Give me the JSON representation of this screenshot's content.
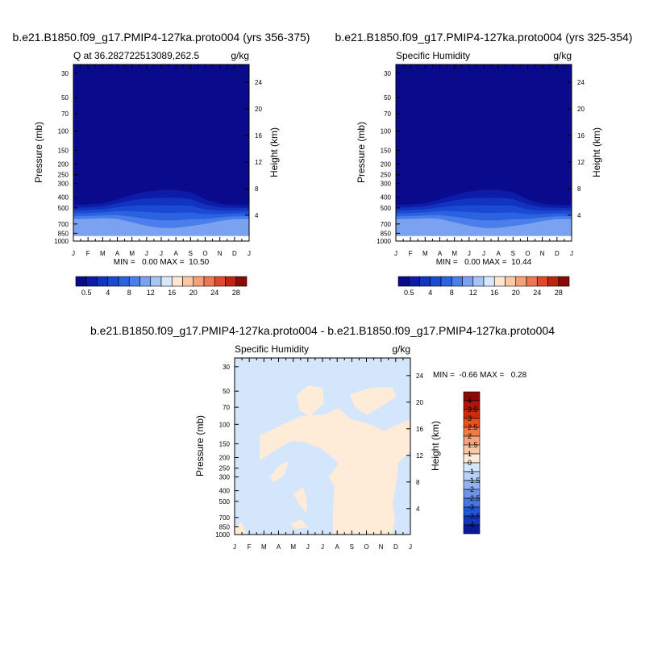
{
  "chart_data": [
    {
      "type": "contour",
      "title": "b.e21.B1850.f09_g17.PMIP4-127ka.proto004 (yrs 356-375)",
      "left_label": "Q at 36.282722513089,262.5",
      "units": "g/kg",
      "xlabel": "",
      "ylabel": "Pressure (mb)",
      "right_ylabel": "Height (km)",
      "x_ticklabels": [
        "J",
        "F",
        "M",
        "A",
        "M",
        "J",
        "J",
        "A",
        "S",
        "O",
        "N",
        "D",
        "J"
      ],
      "y_ticks": [
        30,
        50,
        70,
        100,
        150,
        200,
        250,
        300,
        400,
        500,
        700,
        850,
        1000
      ],
      "y_scale": "log",
      "ylim": [
        1000,
        25
      ],
      "height_ticks": [
        4,
        8,
        12,
        16,
        20,
        24
      ],
      "stats": "MIN =   0.00 MAX =  10.50",
      "min": 0.0,
      "max": 10.5,
      "contour_levels": [
        0.5,
        2,
        4,
        6,
        8,
        10,
        12,
        14,
        16,
        18,
        20,
        22,
        24,
        26,
        28
      ],
      "colorbar_labels": [
        "0.5",
        "4",
        "8",
        "12",
        "16",
        "20",
        "24",
        "28"
      ],
      "surface_pressure_mb": 900,
      "moisture_top_mb": [
        470,
        465,
        455,
        420,
        380,
        355,
        345,
        345,
        360,
        420,
        460,
        470,
        470
      ]
    },
    {
      "type": "contour",
      "title": "b.e21.B1850.f09_g17.PMIP4-127ka.proto004 (yrs 325-354)",
      "left_label": "Specific Humidity",
      "units": "g/kg",
      "xlabel": "",
      "ylabel": "Pressure (mb)",
      "right_ylabel": "Height (km)",
      "x_ticklabels": [
        "J",
        "F",
        "M",
        "A",
        "M",
        "J",
        "J",
        "A",
        "S",
        "O",
        "N",
        "D",
        "J"
      ],
      "y_ticks": [
        30,
        50,
        70,
        100,
        150,
        200,
        250,
        300,
        400,
        500,
        700,
        850,
        1000
      ],
      "y_scale": "log",
      "ylim": [
        1000,
        25
      ],
      "height_ticks": [
        4,
        8,
        12,
        16,
        20,
        24
      ],
      "stats": "MIN =   0.00 MAX =  10.44",
      "min": 0.0,
      "max": 10.44,
      "contour_levels": [
        0.5,
        2,
        4,
        6,
        8,
        10,
        12,
        14,
        16,
        18,
        20,
        22,
        24,
        26,
        28
      ],
      "colorbar_labels": [
        "0.5",
        "4",
        "8",
        "12",
        "16",
        "20",
        "24",
        "28"
      ],
      "surface_pressure_mb": 900,
      "moisture_top_mb": [
        470,
        465,
        455,
        420,
        380,
        355,
        345,
        345,
        360,
        420,
        460,
        470,
        470
      ]
    },
    {
      "type": "contour",
      "title": "b.e21.B1850.f09_g17.PMIP4-127ka.proto004 - b.e21.B1850.f09_g17.PMIP4-127ka.proto004",
      "left_label": "Specific Humidity",
      "units": "g/kg",
      "xlabel": "",
      "ylabel": "Pressure (mb)",
      "right_ylabel": "Height (km)",
      "x_ticklabels": [
        "J",
        "F",
        "M",
        "A",
        "M",
        "J",
        "J",
        "A",
        "S",
        "O",
        "N",
        "D",
        "J"
      ],
      "y_ticks": [
        30,
        50,
        70,
        100,
        150,
        200,
        250,
        300,
        400,
        500,
        700,
        850,
        1000
      ],
      "y_scale": "log",
      "ylim": [
        1000,
        25
      ],
      "height_ticks": [
        4,
        8,
        12,
        16,
        20,
        24
      ],
      "stats": "MIN =  -0.66 MAX =   0.28",
      "min": -0.66,
      "max": 0.28,
      "contour_levels": [
        -4,
        -3.5,
        -3,
        -2.5,
        -2,
        -1.5,
        -1,
        0,
        1,
        1.5,
        2,
        2.5,
        3,
        3.5,
        4
      ],
      "colorbar_labels": [
        "4",
        "3.5",
        "3",
        "2.5",
        "2",
        "1.5",
        "1",
        "0",
        "-1",
        "-1.5",
        "-2",
        "-2.5",
        "-3",
        "-3.5",
        "-4"
      ]
    }
  ],
  "colors": {
    "seq_palette": [
      "#0a0a8c",
      "#0c1ca8",
      "#1232c0",
      "#1a4ad4",
      "#2a62e0",
      "#4a7eea",
      "#7aa2f0",
      "#a8c4f5",
      "#d6e8fb",
      "#ffe6d2",
      "#fbc7a6",
      "#f6a07a",
      "#ef7652",
      "#e04a2a",
      "#c02410",
      "#8a0a06"
    ],
    "diff_palette": [
      "#8a0a06",
      "#b01608",
      "#d02a0c",
      "#e8501c",
      "#f07a48",
      "#f6a27c",
      "#fbc8a6",
      "#feebd8",
      "#d4e6fb",
      "#b8d0f7",
      "#94b2f2",
      "#6e94ea",
      "#4674e0",
      "#2256d2",
      "#1236b8",
      "#0a1a94"
    ],
    "diff_positive": "#feebd8",
    "diff_negative": "#d4e6fb"
  }
}
